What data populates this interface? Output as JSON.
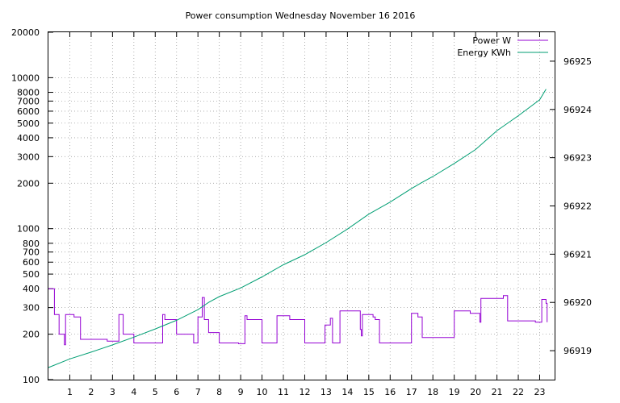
{
  "chart_data": {
    "type": "line",
    "title": "Power consumption Wednesday November 16 2016",
    "xlabel": "",
    "ylabel": "",
    "xlim": [
      0,
      23.7
    ],
    "x_ticks": [
      "1",
      "2",
      "3",
      "4",
      "5",
      "6",
      "7",
      "8",
      "9",
      "10",
      "11",
      "12",
      "13",
      "14",
      "15",
      "16",
      "17",
      "18",
      "19",
      "20",
      "21",
      "22",
      "23"
    ],
    "y_scale": "log",
    "ylim": [
      100,
      20000
    ],
    "y_ticks": [
      "100",
      "200",
      "300",
      "400",
      "500",
      "600",
      "700",
      "800",
      "1000",
      "2000",
      "3000",
      "4000",
      "5000",
      "6000",
      "7000",
      "8000",
      "10000",
      "20000"
    ],
    "y2lim": [
      96918.4,
      96925.6
    ],
    "y2_ticks": [
      "96919",
      "96920",
      "96921",
      "96922",
      "96923",
      "96924",
      "96925"
    ],
    "grid": true,
    "legend_position": "top-right",
    "series": [
      {
        "name": "Power W",
        "axis": "left",
        "color": "#9400d3",
        "step": true,
        "x": [
          0.0,
          0.25,
          0.28,
          0.45,
          0.5,
          0.65,
          0.75,
          0.8,
          1.0,
          1.2,
          1.4,
          1.5,
          2.2,
          2.7,
          2.75,
          3.3,
          3.4,
          3.5,
          4.0,
          4.9,
          5.35,
          5.45,
          6.0,
          6.05,
          6.2,
          6.8,
          7.0,
          7.2,
          7.3,
          7.5,
          8.0,
          8.1,
          8.9,
          9.2,
          9.3,
          10.0,
          10.6,
          10.7,
          11.2,
          11.3,
          12.0,
          12.6,
          12.7,
          12.95,
          13.2,
          13.3,
          13.6,
          13.65,
          14.0,
          14.5,
          14.6,
          14.65,
          14.7,
          15.0,
          15.2,
          15.3,
          15.5,
          16.0,
          16.7,
          17.0,
          17.3,
          17.5,
          18.0,
          18.8,
          19.0,
          19.7,
          19.75,
          20.2,
          20.25,
          21.2,
          21.3,
          21.5,
          22.0,
          22.7,
          22.8,
          23.1,
          23.3,
          23.35
        ],
        "values": [
          400,
          400,
          270,
          270,
          200,
          200,
          170,
          270,
          270,
          260,
          260,
          185,
          185,
          185,
          180,
          270,
          270,
          200,
          175,
          175,
          270,
          250,
          200,
          200,
          200,
          175,
          260,
          350,
          250,
          205,
          175,
          175,
          173,
          265,
          250,
          175,
          175,
          265,
          265,
          250,
          175,
          175,
          175,
          230,
          255,
          175,
          175,
          285,
          285,
          285,
          215,
          195,
          270,
          270,
          260,
          250,
          175,
          175,
          175,
          275,
          260,
          190,
          190,
          190,
          285,
          285,
          275,
          240,
          345,
          345,
          360,
          245,
          245,
          245,
          240,
          340,
          320,
          240
        ]
      },
      {
        "name": "Energy KWh",
        "axis": "right",
        "color": "#009e73",
        "x": [
          0,
          1,
          2,
          3,
          4,
          5,
          6,
          7,
          7.5,
          8,
          9,
          10,
          11,
          12,
          13,
          14,
          15,
          16,
          17,
          17.5,
          18,
          19,
          20,
          21,
          22,
          23,
          23.3
        ],
        "values": [
          96918.65,
          96918.83,
          96918.97,
          96919.12,
          96919.28,
          96919.45,
          96919.63,
          96919.85,
          96920.0,
          96920.12,
          96920.3,
          96920.53,
          96920.78,
          96920.99,
          96921.24,
          96921.52,
          96921.83,
          96922.08,
          96922.36,
          96922.49,
          96922.61,
          96922.88,
          96923.17,
          96923.56,
          96923.87,
          96924.2,
          96924.42
        ]
      }
    ]
  }
}
